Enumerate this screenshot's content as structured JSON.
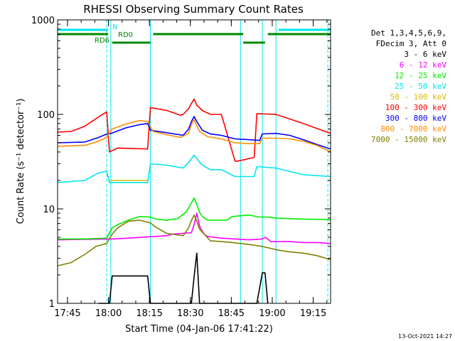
{
  "chart_data": {
    "type": "line",
    "title": "RHESSI Observing Summary Count Rates",
    "xlabel": "Start Time (04-Jan-06 17:41:22)",
    "ylabel": "Count Rate (s⁻¹ detector⁻¹)",
    "y_scale": "log",
    "ylim": [
      1,
      1000
    ],
    "y_ticks": [
      1,
      10,
      100,
      1000
    ],
    "y_tick_labels": [
      "1",
      "10",
      "100",
      "1000"
    ],
    "xlim_minutes": [
      0,
      100
    ],
    "x_ticks_minutes": [
      3.633,
      18.633,
      33.633,
      48.633,
      63.633,
      78.633,
      93.633
    ],
    "x_tick_labels": [
      "17:45",
      "18:00",
      "18:15",
      "18:30",
      "18:45",
      "19:00",
      "19:15"
    ],
    "legend_header": [
      "Det 1,3,4,5,6,9,",
      "FDecim 3, Att 0"
    ],
    "series": [
      {
        "name": "3 - 6 keV",
        "color": "#000000",
        "x": [
          15,
          19,
          20,
          33,
          34,
          49,
          50,
          51,
          52,
          73,
          75,
          76,
          77
        ],
        "y": [
          1,
          1,
          1.95,
          1.95,
          1,
          1,
          1.9,
          3.4,
          1,
          1,
          2.1,
          2.1,
          1
        ]
      },
      {
        "name": "6 - 12 keV",
        "color": "#ff00ff",
        "x": [
          0,
          20,
          26,
          40,
          42,
          49,
          50,
          51,
          52,
          53,
          54,
          55,
          60,
          65,
          70,
          75,
          76,
          77,
          78,
          85,
          90,
          95,
          100
        ],
        "y": [
          4.7,
          4.8,
          4.9,
          5.2,
          5.4,
          5.6,
          6.8,
          9.0,
          6.6,
          5.8,
          5.3,
          5.1,
          4.9,
          4.8,
          4.7,
          4.8,
          5.0,
          4.8,
          4.5,
          4.5,
          4.4,
          4.4,
          4.3
        ]
      },
      {
        "name": "12 - 25 keV",
        "color": "#00ee00",
        "x": [
          0,
          10,
          18,
          20,
          22,
          26,
          30,
          34,
          36,
          40,
          44,
          47,
          49,
          50,
          51,
          52,
          53,
          55,
          62,
          64,
          70,
          72,
          74,
          77,
          80,
          90,
          100
        ],
        "y": [
          4.8,
          4.8,
          4.9,
          6.3,
          6.8,
          7.6,
          8.3,
          8.2,
          7.8,
          7.6,
          7.9,
          9.2,
          11.5,
          13.0,
          11.2,
          9.2,
          8.3,
          7.6,
          7.6,
          8.3,
          8.6,
          8.4,
          8.2,
          8.2,
          8.0,
          7.8,
          7.7
        ]
      },
      {
        "name": "25 - 50 keV",
        "color": "#00e5ee",
        "x": [
          0,
          10,
          15,
          18,
          19,
          33,
          34,
          40,
          46,
          48,
          49,
          50,
          51,
          53,
          56,
          60,
          65,
          66,
          72,
          73,
          80,
          90,
          100
        ],
        "y": [
          19,
          20,
          24,
          25,
          19,
          19,
          30,
          29,
          27,
          31,
          34,
          37,
          34,
          29,
          26,
          26,
          22,
          22,
          22,
          28,
          27,
          23,
          22
        ]
      },
      {
        "name": "50 - 100 keV",
        "color": "#ddbb00",
        "x": [
          19,
          33
        ],
        "y": [
          20,
          20
        ]
      },
      {
        "name": "100 - 300 keV",
        "color": "#ff0000",
        "x": [
          0,
          5,
          10,
          16,
          18,
          19,
          22,
          33,
          34,
          40,
          45,
          46,
          48,
          49,
          50,
          51,
          53,
          56,
          60,
          65,
          66,
          72,
          73,
          80,
          90,
          100
        ],
        "y": [
          65,
          66,
          75,
          98,
          106,
          40,
          44,
          43,
          118,
          110,
          98,
          100,
          115,
          130,
          145,
          125,
          110,
          100,
          100,
          32,
          32,
          35,
          102,
          100,
          80,
          63
        ]
      },
      {
        "name": "300 - 800 keV",
        "color": "#0000ff",
        "x": [
          0,
          10,
          15,
          18,
          19,
          25,
          30,
          33,
          34,
          40,
          46,
          48,
          49,
          50,
          51,
          53,
          56,
          60,
          65,
          70,
          74,
          75,
          80,
          85,
          90,
          95,
          100
        ],
        "y": [
          50,
          51,
          57,
          62,
          62,
          72,
          78,
          80,
          68,
          64,
          60,
          70,
          84,
          95,
          84,
          68,
          62,
          60,
          55,
          54,
          53,
          62,
          63,
          60,
          54,
          48,
          43
        ]
      },
      {
        "name": "800 - 7000 keV",
        "color": "#ff8c00",
        "x": [
          0,
          10,
          15,
          18,
          20,
          25,
          30,
          33,
          35,
          40,
          45,
          48,
          49,
          50,
          51,
          52,
          55,
          60,
          65,
          70,
          74,
          75,
          80,
          85,
          90,
          95,
          100
        ],
        "y": [
          46,
          47,
          52,
          57,
          70,
          79,
          86,
          84,
          66,
          61,
          57,
          63,
          78,
          88,
          76,
          66,
          58,
          55,
          50,
          49,
          49,
          56,
          56,
          55,
          52,
          47,
          40
        ]
      },
      {
        "name": "7000 - 15000 keV",
        "color": "#808000",
        "x": [
          0,
          5,
          10,
          14,
          18,
          20,
          22,
          26,
          30,
          34,
          36,
          40,
          46,
          48,
          49,
          50,
          51,
          52,
          56,
          60,
          64,
          70,
          75,
          80,
          85,
          90,
          95,
          100
        ],
        "y": [
          2.5,
          2.7,
          3.3,
          4.0,
          4.3,
          5.4,
          6.3,
          7.4,
          7.6,
          7.1,
          6.4,
          5.5,
          5.2,
          6.3,
          7.5,
          8.6,
          7.4,
          6.1,
          4.6,
          4.5,
          4.4,
          4.2,
          4.0,
          3.7,
          3.5,
          3.4,
          3.2,
          2.9
        ]
      }
    ],
    "orbit_flags": [
      {
        "label": "N",
        "color": "#00e5ee",
        "segments": [
          [
            0,
            18.5
          ],
          [
            81,
            100
          ]
        ]
      },
      {
        "label": "RD0",
        "color": "#008800",
        "segments": [
          [
            0,
            18.5
          ],
          [
            35,
            68
          ],
          [
            77,
            100
          ]
        ]
      },
      {
        "label": "RD6",
        "color": "#008800",
        "segments": [
          [
            20,
            34
          ],
          [
            68,
            76
          ]
        ]
      }
    ],
    "vertical_markers": [
      {
        "color": "#00e5ee",
        "style": "solid",
        "x": [
          0,
          19.5,
          34,
          67,
          75,
          80
        ]
      },
      {
        "color": "#00e5ee",
        "style": "dashed",
        "x": [
          18,
          99
        ]
      }
    ],
    "grid": false,
    "legend_placement": "right-outside"
  },
  "footer": {
    "timestamp": "13-Oct-2021 14:27"
  }
}
